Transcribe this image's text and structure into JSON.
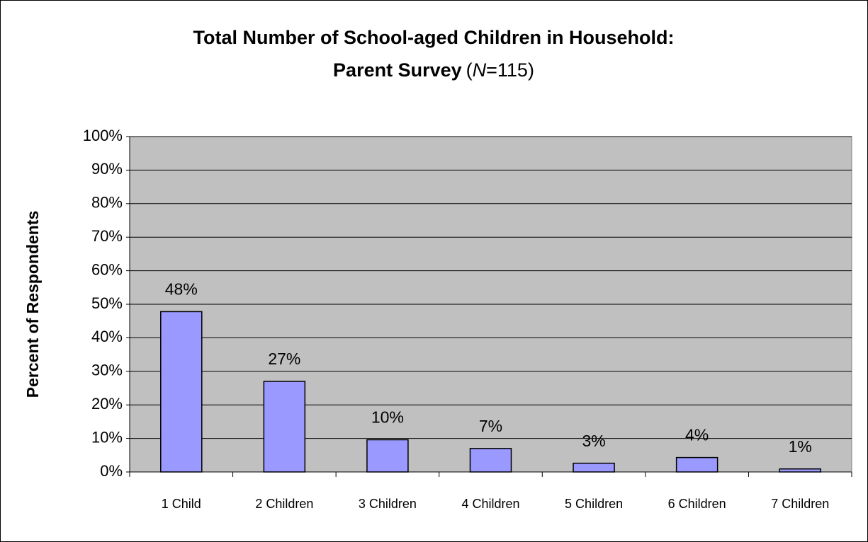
{
  "chart_data": {
    "type": "bar",
    "title": "Total Number of School-aged Children in Household:",
    "subtitle_parts": [
      "Parent Survey",
      "(",
      "N",
      "=115)"
    ],
    "y_label": "Percent of Respondents",
    "categories": [
      "1 Child",
      "2 Children",
      "3 Children",
      "4 Children",
      "5 Children",
      "6 Children",
      "7 Children"
    ],
    "values": [
      47.8,
      27,
      9.6,
      7,
      2.6,
      4.3,
      0.9
    ],
    "value_labels": [
      "48%",
      "27%",
      "10%",
      "7%",
      "3%",
      "4%",
      "1%"
    ],
    "color": "#9999ff",
    "plot_background": "#c0c0c0",
    "ylim": [
      0,
      100
    ],
    "yticks": [
      {
        "value": 0,
        "label": "0%"
      },
      {
        "value": 10,
        "label": "10%"
      },
      {
        "value": 20,
        "label": "20%"
      },
      {
        "value": 30,
        "label": "30%"
      },
      {
        "value": 40,
        "label": "40%"
      },
      {
        "value": 50,
        "label": "50%"
      },
      {
        "value": 60,
        "label": "60%"
      },
      {
        "value": 70,
        "label": "70%"
      },
      {
        "value": 80,
        "label": "80%"
      },
      {
        "value": 90,
        "label": "90%"
      },
      {
        "value": 100,
        "label": "100%"
      }
    ],
    "grid": true
  }
}
